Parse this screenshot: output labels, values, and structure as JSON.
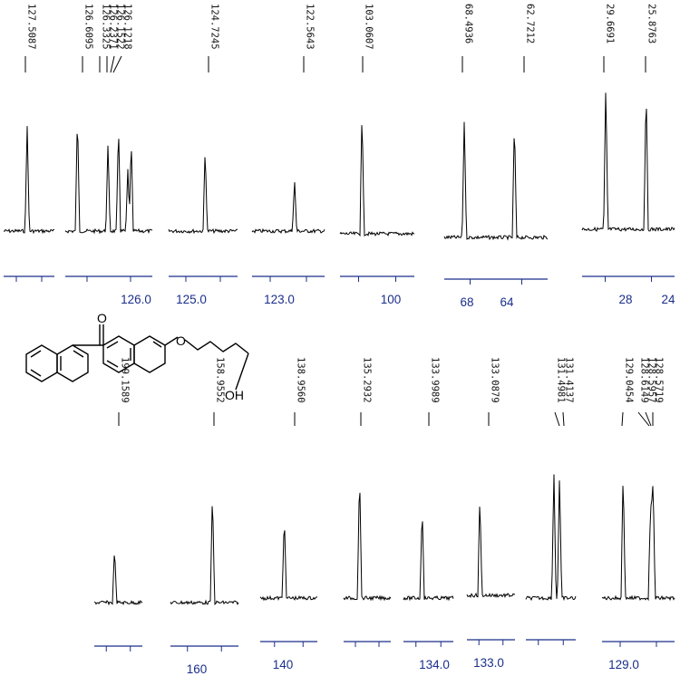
{
  "chart_data": {
    "type": "nmr-13c-spectrum",
    "panels_top": [
      {
        "id": "p1",
        "x_range": [
          127.62,
          127.38
        ],
        "peaks": [
          127.5087
        ],
        "tick_labels": []
      },
      {
        "id": "p2",
        "x_range": [
          126.72,
          125.93
        ],
        "peaks": [
          126.6095,
          126.3325,
          126.2371,
          126.1522,
          126.1218
        ],
        "tick_labels": [
          "126.0"
        ]
      },
      {
        "id": "p3",
        "x_range": [
          125.09,
          124.4
        ],
        "peaks": [
          124.7245
        ],
        "tick_labels": [
          "125.0"
        ]
      },
      {
        "id": "p4",
        "x_range": [
          123.32,
          122.03
        ],
        "peaks": [
          122.5643
        ],
        "tick_labels": [
          "123.0"
        ]
      },
      {
        "id": "p5",
        "x_range": [
          106.2,
          95.6
        ],
        "peaks": [
          103.0607
        ],
        "tick_labels": [
          "100"
        ]
      },
      {
        "id": "p6",
        "x_range": [
          70.8,
          58.9
        ],
        "peaks": [
          68.4936,
          62.7212
        ],
        "tick_labels": [
          "68",
          "64"
        ]
      },
      {
        "id": "p7",
        "x_range": [
          31.9,
          23.2
        ],
        "peaks": [
          29.6691,
          25.8763
        ],
        "tick_labels": [
          "28",
          "24"
        ]
      }
    ],
    "panels_bottom": [
      {
        "id": "q1",
        "x_range": [
          204.6,
          191.7
        ],
        "peaks": [
          199.1589
        ],
        "tick_labels": []
      },
      {
        "id": "q2",
        "x_range": [
          166.8,
          154.1
        ],
        "peaks": [
          158.9552
        ],
        "tick_labels": [
          "160"
        ]
      },
      {
        "id": "q3",
        "x_range": [
          143.3,
          133.0
        ],
        "peaks": [
          138.956
        ],
        "tick_labels": [
          "140"
        ]
      },
      {
        "id": "q4",
        "x_range": [
          135.53,
          134.83
        ],
        "peaks": [
          135.2932
        ],
        "tick_labels": []
      },
      {
        "id": "q5",
        "x_range": [
          134.28,
          133.53
        ],
        "peaks": [
          133.9989
        ],
        "tick_labels": [
          "134.0"
        ]
      },
      {
        "id": "q6",
        "x_range": [
          133.33,
          132.43
        ],
        "peaks": [
          133.0879
        ],
        "tick_labels": [
          "133.0"
        ]
      },
      {
        "id": "q7",
        "x_range": [
          131.92,
          131.17
        ],
        "peaks": [
          131.4981,
          131.4137
        ],
        "tick_labels": []
      },
      {
        "id": "q8",
        "x_range": [
          129.38,
          128.23
        ],
        "peaks": [
          129.0454,
          128.6149,
          128.5957,
          128.5719
        ],
        "tick_labels": [
          "129.0"
        ]
      }
    ],
    "peak_labels_top": [
      "127.5087",
      "126.6095",
      "126.3325",
      "126.2371",
      "126.1522",
      "126.1218",
      "124.7245",
      "122.5643",
      "103.0607",
      "68.4936",
      "62.7212",
      "29.6691",
      "25.8763"
    ],
    "peak_labels_bottom": [
      "199.1589",
      "158.9552",
      "138.9560",
      "135.2932",
      "133.9989",
      "133.0879",
      "131.4981",
      "131.4137",
      "129.0454",
      "128.6149",
      "128.5957",
      "128.5719"
    ],
    "structure_labels": {
      "carbonyl_oxygen": "O",
      "ether_oxygen": "O",
      "hydroxyl": "OH"
    },
    "colors": {
      "spectrum": "#000000",
      "axis": "#1a2f8a",
      "text": "#111111"
    }
  }
}
